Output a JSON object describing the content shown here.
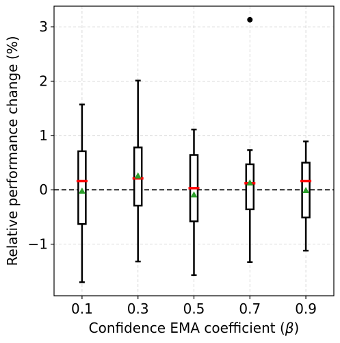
{
  "chart_data": {
    "type": "box",
    "title": "",
    "xlabel": "Confidence EMA coefficient (",
    "xlabel_symbol": "β",
    "xlabel_suffix": ")",
    "ylabel": "Relative performance change (%)",
    "categories": [
      "0.1",
      "0.3",
      "0.5",
      "0.7",
      "0.9"
    ],
    "ylim": [
      -1.95,
      3.38
    ],
    "yticks": [
      -1,
      0,
      1,
      2,
      3
    ],
    "ytick_labels": [
      "−1",
      "0",
      "1",
      "2",
      "3"
    ],
    "grid": true,
    "reference_line": 0,
    "boxes": [
      {
        "category": "0.1",
        "whisker_low": -1.7,
        "q1": -0.63,
        "median": 0.16,
        "q3": 0.71,
        "whisker_high": 1.57,
        "mean": -0.02,
        "outliers": []
      },
      {
        "category": "0.3",
        "whisker_low": -1.32,
        "q1": -0.29,
        "median": 0.21,
        "q3": 0.78,
        "whisker_high": 2.01,
        "mean": 0.26,
        "outliers": []
      },
      {
        "category": "0.5",
        "whisker_low": -1.57,
        "q1": -0.58,
        "median": 0.03,
        "q3": 0.64,
        "whisker_high": 1.11,
        "mean": -0.09,
        "outliers": []
      },
      {
        "category": "0.7",
        "whisker_low": -1.33,
        "q1": -0.36,
        "median": 0.12,
        "q3": 0.47,
        "whisker_high": 0.73,
        "mean": 0.13,
        "outliers": [
          3.13
        ]
      },
      {
        "category": "0.9",
        "whisker_low": -1.12,
        "q1": -0.51,
        "median": 0.16,
        "q3": 0.5,
        "whisker_high": 0.89,
        "mean": -0.01,
        "outliers": []
      }
    ],
    "colors": {
      "box": "#000000",
      "median": "#ff0000",
      "mean": "#2ca02c",
      "outlier": "#000000",
      "grid": "#d3d3d3",
      "reference_line": "#000000"
    }
  }
}
